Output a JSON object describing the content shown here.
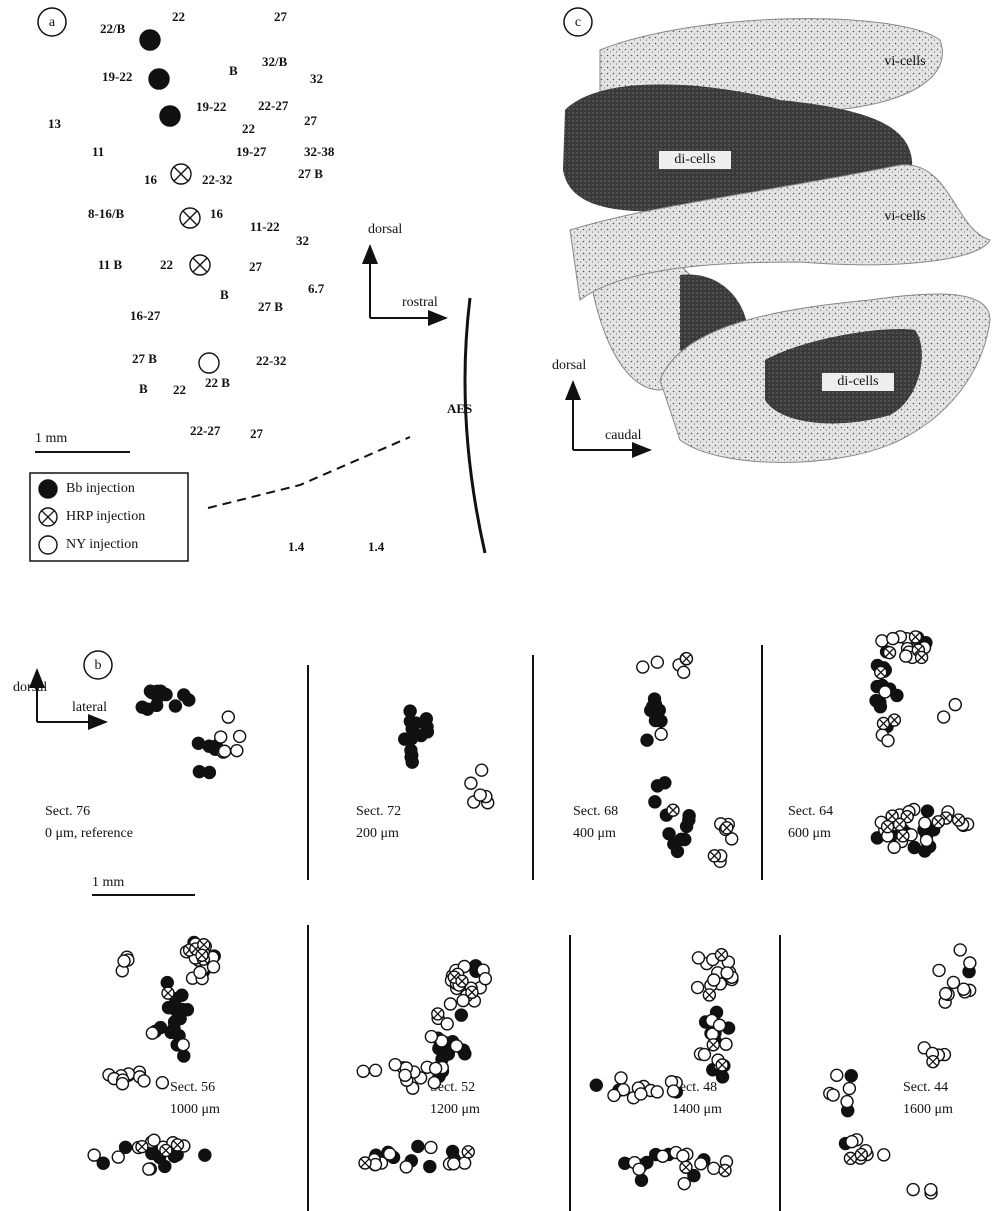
{
  "panel_a": {
    "label": "a",
    "numbers": [
      "22/B",
      "22",
      "27",
      "19-22",
      "B",
      "32/B",
      "32",
      "13",
      "19-22",
      "22-27",
      "22",
      "27",
      "11",
      "19-27",
      "32-38",
      "16",
      "22-32",
      "27 B",
      "8-16/B",
      "16",
      "11-22",
      "32",
      "11 B",
      "22",
      "27",
      "6.7",
      "B",
      "27 B",
      "16-27",
      "27 B",
      "22-32",
      "22 B",
      "B",
      "22",
      "22-27",
      "27",
      "1.4",
      "1.4"
    ],
    "axes": {
      "dorsal": "dorsal",
      "rostral": "rostral"
    },
    "landmark": "AES",
    "scale_bar": "1 mm",
    "legend": [
      "Bb injection",
      "HRP injection",
      "NY injection"
    ]
  },
  "panel_b": {
    "label": "b",
    "axes": {
      "dorsal": "dorsal",
      "lateral": "lateral"
    },
    "scale_bar": "1 mm",
    "sections": [
      {
        "name": "Sect. 76",
        "depth": "0 μm, reference"
      },
      {
        "name": "Sect. 72",
        "depth": "200 μm"
      },
      {
        "name": "Sect. 68",
        "depth": "400 μm"
      },
      {
        "name": "Sect. 64",
        "depth": "600 μm"
      },
      {
        "name": "Sect. 56",
        "depth": "1000 μm"
      },
      {
        "name": "Sect. 52",
        "depth": "1200 μm"
      },
      {
        "name": "Sect. 48",
        "depth": "1400 μm"
      },
      {
        "name": "Sect. 44",
        "depth": "1600 μm"
      }
    ]
  },
  "panel_c": {
    "label": "c",
    "regions": [
      "vi-cells",
      "di-cells",
      "vi-cells",
      "di-cells"
    ],
    "axes": {
      "dorsal": "dorsal",
      "caudal": "caudal"
    }
  }
}
